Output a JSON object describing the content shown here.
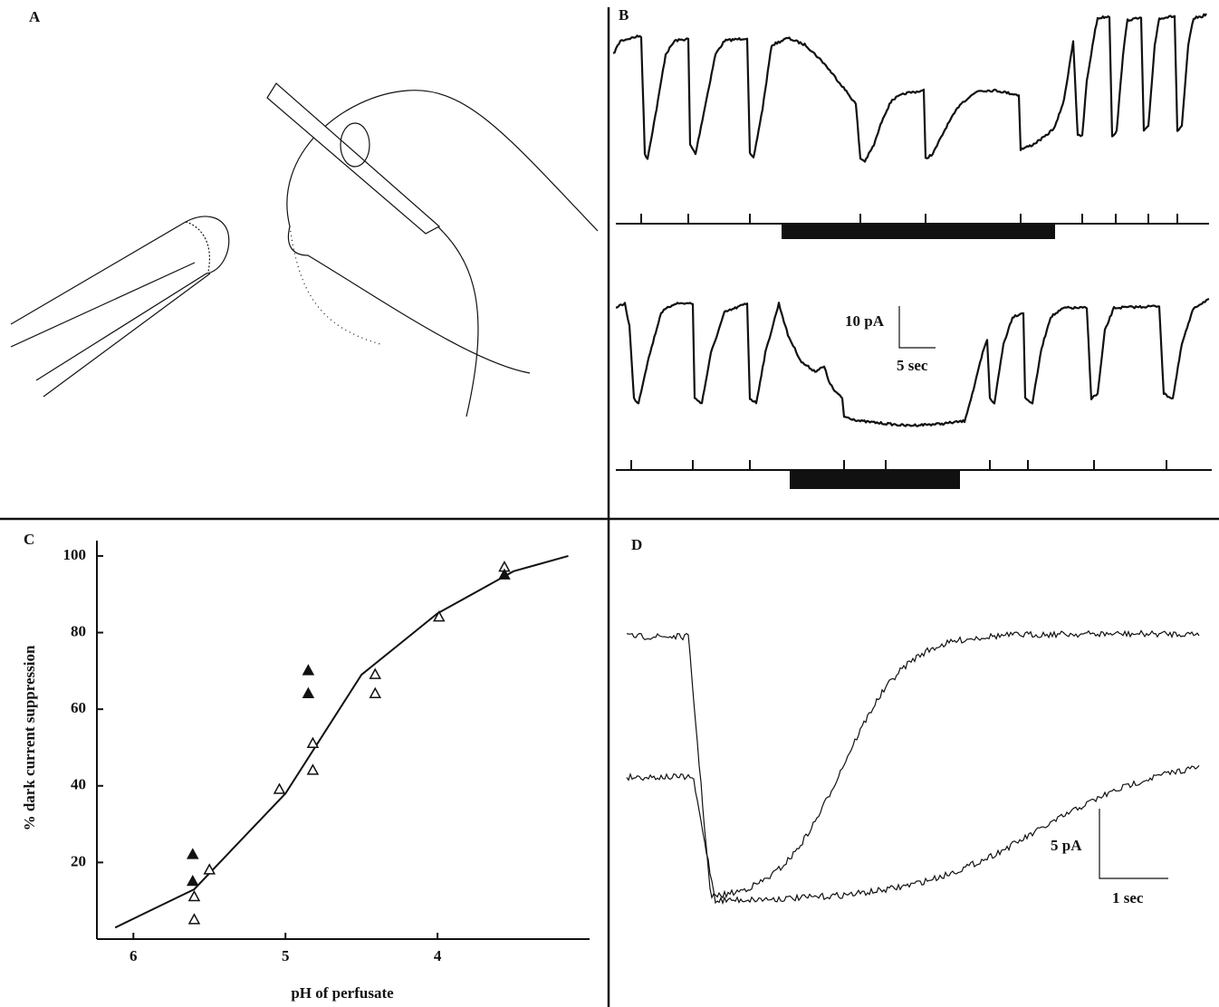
{
  "panels": {
    "a": {
      "label": "A"
    },
    "b": {
      "label": "B",
      "scale_y": "10 pA",
      "scale_x": "5 sec"
    },
    "d": {
      "label": "D",
      "scale_y": "5 pA",
      "scale_x": "1 sec"
    }
  },
  "chart_data": {
    "type": "scatter",
    "panel_label": "C",
    "xlabel": "pH of perfusate",
    "ylabel": "% dark current suppression",
    "xlim": [
      6.24,
      3.0
    ],
    "ylim": [
      0,
      104
    ],
    "xticks": [
      6,
      5,
      4
    ],
    "yticks": [
      20,
      40,
      60,
      80,
      100
    ],
    "series": [
      {
        "marker": "open",
        "color": "#111111",
        "x": [
          5.6,
          5.6,
          5.5,
          5.04,
          4.82,
          4.82,
          4.41,
          4.41,
          3.99,
          3.56
        ],
        "values": [
          11,
          5,
          18,
          39,
          51,
          44,
          69,
          64,
          84,
          97
        ]
      },
      {
        "marker": "filled",
        "color": "#111111",
        "x": [
          5.61,
          5.61,
          4.85,
          4.85,
          3.56
        ],
        "values": [
          22,
          15,
          70,
          64,
          95
        ]
      }
    ],
    "fit": {
      "x": [
        6.12,
        5.6,
        5.0,
        4.5,
        4.0,
        3.5,
        3.14
      ],
      "values": [
        3,
        13,
        38,
        69,
        85,
        96,
        100
      ]
    }
  }
}
